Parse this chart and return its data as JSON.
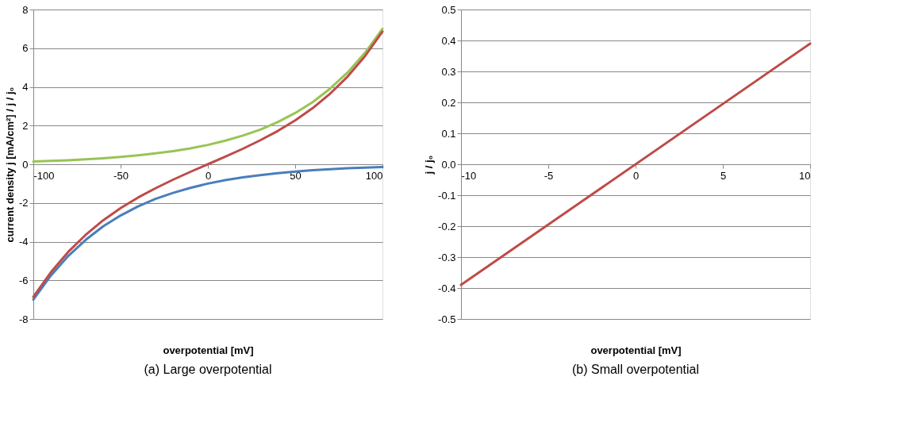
{
  "chart_data": [
    {
      "type": "line",
      "title": "(a) Large overpotential",
      "xlabel": "overpotential [mV]",
      "ylabel": "current density j [mA/cm²]  /  j / j₀",
      "x": [
        -100,
        -90,
        -80,
        -70,
        -60,
        -50,
        -40,
        -30,
        -20,
        -10,
        0,
        10,
        20,
        30,
        40,
        50,
        60,
        70,
        80,
        90,
        100
      ],
      "series": [
        {
          "color": "#4a7ebb",
          "values": [
            -7.0,
            -5.76,
            -4.74,
            -3.91,
            -3.21,
            -2.65,
            -2.18,
            -1.79,
            -1.48,
            -1.22,
            -1.0,
            -0.82,
            -0.68,
            -0.56,
            -0.46,
            -0.38,
            -0.31,
            -0.26,
            -0.21,
            -0.17,
            -0.14
          ]
        },
        {
          "color": "#98c454",
          "values": [
            0.14,
            0.17,
            0.21,
            0.26,
            0.31,
            0.38,
            0.46,
            0.56,
            0.68,
            0.82,
            1.0,
            1.22,
            1.48,
            1.79,
            2.18,
            2.65,
            3.21,
            3.91,
            4.74,
            5.76,
            7.0
          ]
        },
        {
          "color": "#be4b48",
          "values": [
            -6.86,
            -5.59,
            -4.53,
            -3.65,
            -2.9,
            -2.27,
            -1.72,
            -1.24,
            -0.8,
            -0.39,
            0.0,
            0.39,
            0.8,
            1.24,
            1.72,
            2.27,
            2.9,
            3.65,
            4.53,
            5.59,
            6.86
          ]
        }
      ],
      "xlim": [
        -100,
        100
      ],
      "xticks": [
        -100,
        -50,
        0,
        50,
        100
      ],
      "ylim": [
        -8,
        8
      ],
      "yticks": [
        -8,
        -6,
        -4,
        -2,
        0,
        2,
        4,
        6,
        8
      ],
      "grid": "y",
      "legend": false
    },
    {
      "type": "line",
      "title": "(b) Small overpotential",
      "xlabel": "overpotential [mV]",
      "ylabel": "j / j₀",
      "x": [
        -10,
        10
      ],
      "series": [
        {
          "color": "#be4b48",
          "values": [
            -0.39,
            0.39
          ]
        }
      ],
      "xlim": [
        -10,
        10
      ],
      "xticks": [
        -10,
        -5,
        0,
        5,
        10
      ],
      "ylim": [
        -0.5,
        0.5
      ],
      "yticks": [
        {
          "value": -0.5,
          "label": "-0.5"
        },
        {
          "value": -0.4,
          "label": "-0.4"
        },
        {
          "value": -0.3,
          "label": "-0.3"
        },
        {
          "value": -0.2,
          "label": "-0.2"
        },
        {
          "value": -0.1,
          "label": "-0.1"
        },
        {
          "value": 0,
          "label": "0.0"
        },
        {
          "value": 0.1,
          "label": "0.1"
        },
        {
          "value": 0.2,
          "label": "0.2"
        },
        {
          "value": 0.3,
          "label": "0.3"
        },
        {
          "value": 0.4,
          "label": "0.4"
        },
        {
          "value": 0.5,
          "label": "0.5"
        }
      ],
      "grid": "y",
      "legend": false
    }
  ]
}
